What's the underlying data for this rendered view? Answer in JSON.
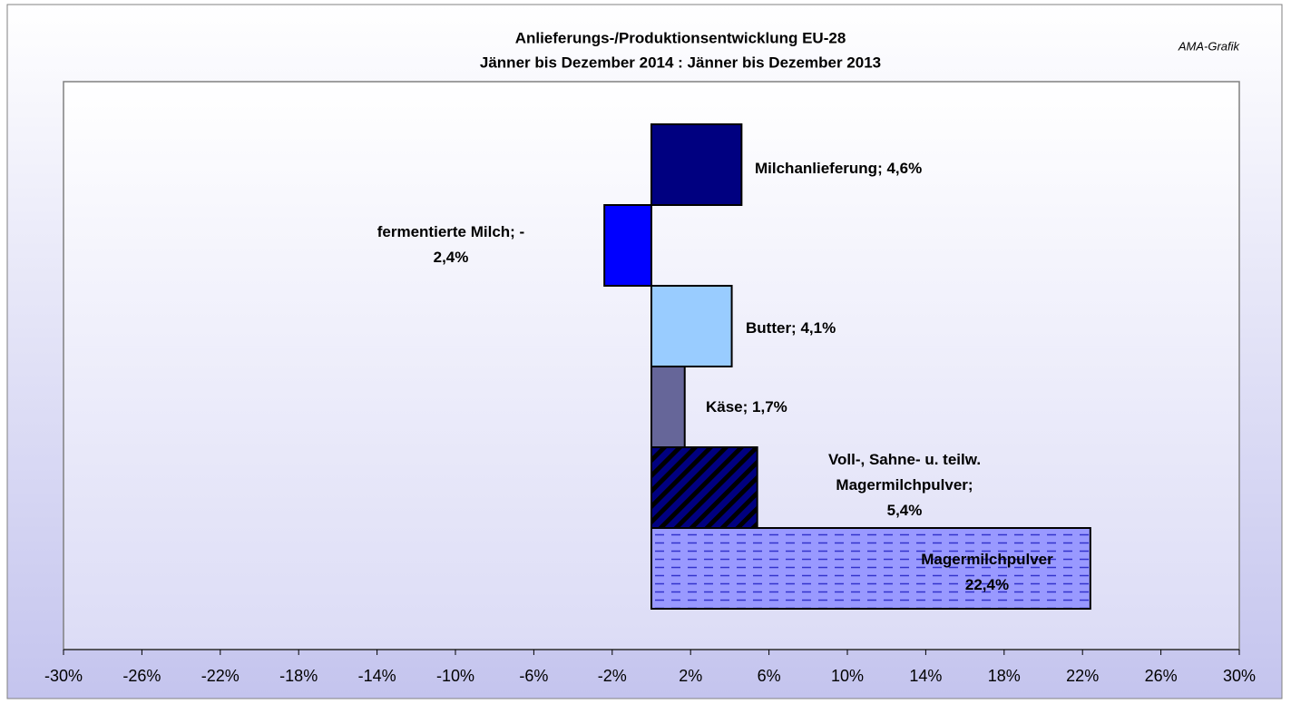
{
  "chart_data": {
    "type": "hbar",
    "title": "Anlieferungs-/Produktionsentwicklung EU-28",
    "subtitle": "Jänner bis Dezember 2014 : Jänner bis Dezember 2013",
    "source": "AMA-Grafik",
    "values": [
      4.6,
      -2.4,
      4.1,
      1.7,
      5.4,
      22.4
    ],
    "value_labels": [
      "Milchanlieferung; 4,6%",
      "fermentierte Milch; -\n2,4%",
      "Butter; 4,1%",
      "Käse; 1,7%",
      "Voll-, Sahne- u. teilw.\nMagermilchpulver;\n5,4%",
      "Magermilchpulver\n22,4%"
    ],
    "colors": [
      "#000080",
      "#0000ff",
      "#99ccff",
      "#666699",
      "#000080",
      "#9999ff"
    ],
    "patterns": [
      null,
      null,
      null,
      null,
      "diagonal",
      "dashed"
    ],
    "xlim": [
      -30,
      30
    ],
    "xticks": [
      {
        "value": -30,
        "label": "-30%"
      },
      {
        "value": -26,
        "label": "-26%"
      },
      {
        "value": -22,
        "label": "-22%"
      },
      {
        "value": -18,
        "label": "-18%"
      },
      {
        "value": -14,
        "label": "-14%"
      },
      {
        "value": -10,
        "label": "-10%"
      },
      {
        "value": -6,
        "label": "-6%"
      },
      {
        "value": -2,
        "label": "-2%"
      },
      {
        "value": 2,
        "label": "2%"
      },
      {
        "value": 6,
        "label": "6%"
      },
      {
        "value": 10,
        "label": "10%"
      },
      {
        "value": 14,
        "label": "14%"
      },
      {
        "value": 18,
        "label": "18%"
      },
      {
        "value": 22,
        "label": "22%"
      },
      {
        "value": 26,
        "label": "26%"
      },
      {
        "value": 30,
        "label": "30%"
      }
    ]
  }
}
